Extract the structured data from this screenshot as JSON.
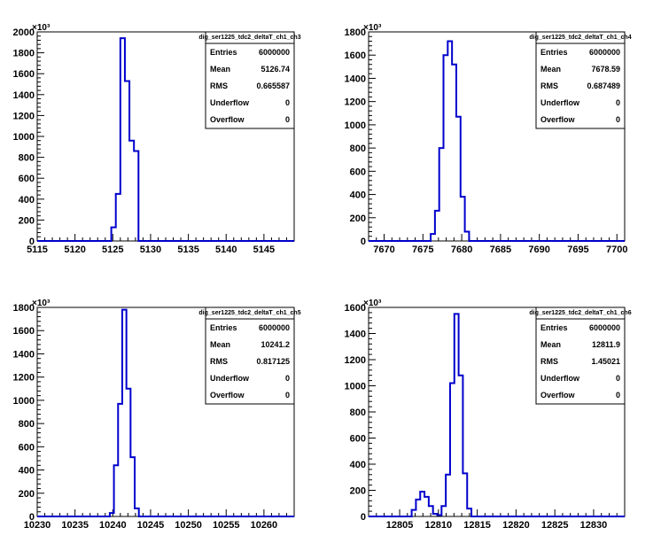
{
  "colors": {
    "line": "#0000cc",
    "axis": "#000000",
    "background": "#ffffff"
  },
  "chart_data": [
    {
      "type": "histogram",
      "exponent_label": "×10³",
      "xlim": [
        5115,
        5149
      ],
      "ylim": [
        0,
        2000
      ],
      "x_ticks": [
        "5115",
        "5120",
        "5125",
        "5130",
        "5135",
        "5140",
        "5145"
      ],
      "y_ticks": [
        "0",
        "200",
        "400",
        "600",
        "800",
        "1000",
        "1200",
        "1400",
        "1600",
        "1800",
        "2000"
      ],
      "bin_edges": [
        5124.8,
        5125.4,
        5126.0,
        5126.6,
        5127.2,
        5127.8,
        5128.4
      ],
      "values": [
        130,
        450,
        1940,
        1530,
        960,
        860,
        0
      ],
      "stats": {
        "title": "dig_ser1225_tdc2_deltaT_ch1_ch3",
        "rows": [
          {
            "label": "Entries",
            "value": "6000000"
          },
          {
            "label": "Mean",
            "value": "5126.74"
          },
          {
            "label": "RMS",
            "value": "0.665587"
          },
          {
            "label": "Underflow",
            "value": "0"
          },
          {
            "label": "Overflow",
            "value": "0"
          }
        ]
      }
    },
    {
      "type": "histogram",
      "exponent_label": "×10³",
      "xlim": [
        7668,
        7701
      ],
      "ylim": [
        0,
        1800
      ],
      "x_ticks": [
        "7670",
        "7675",
        "7680",
        "7685",
        "7690",
        "7695",
        "7700"
      ],
      "y_ticks": [
        "0",
        "200",
        "400",
        "600",
        "800",
        "1000",
        "1200",
        "1400",
        "1600",
        "1800"
      ],
      "bin_edges": [
        7676.0,
        7676.55,
        7677.1,
        7677.65,
        7678.2,
        7678.75,
        7679.3,
        7679.85,
        7680.4
      ],
      "values": [
        60,
        260,
        800,
        1600,
        1720,
        1520,
        1070,
        380,
        80
      ],
      "stats": {
        "title": "dig_ser1225_tdc2_deltaT_ch1_ch4",
        "rows": [
          {
            "label": "Entries",
            "value": "6000000"
          },
          {
            "label": "Mean",
            "value": "7678.59"
          },
          {
            "label": "RMS",
            "value": "0.687489"
          },
          {
            "label": "Underflow",
            "value": "0"
          },
          {
            "label": "Overflow",
            "value": "0"
          }
        ]
      }
    },
    {
      "type": "histogram",
      "exponent_label": "×10³",
      "xlim": [
        10230,
        10264
      ],
      "ylim": [
        0,
        1800
      ],
      "x_ticks": [
        "10230",
        "10235",
        "10240",
        "10245",
        "10250",
        "10255",
        "10260"
      ],
      "y_ticks": [
        "0",
        "200",
        "400",
        "600",
        "800",
        "1000",
        "1200",
        "1400",
        "1600",
        "1800"
      ],
      "bin_edges": [
        10239.6,
        10240.15,
        10240.7,
        10241.25,
        10241.8,
        10242.35,
        10242.9,
        10243.45
      ],
      "values": [
        30,
        440,
        970,
        1780,
        1100,
        510,
        70,
        0
      ],
      "stats": {
        "title": "dig_ser1225_tdc2_deltaT_ch1_ch5",
        "rows": [
          {
            "label": "Entries",
            "value": "6000000"
          },
          {
            "label": "Mean",
            "value": "10241.2"
          },
          {
            "label": "RMS",
            "value": "0.817125"
          },
          {
            "label": "Underflow",
            "value": "0"
          },
          {
            "label": "Overflow",
            "value": "0"
          }
        ]
      }
    },
    {
      "type": "histogram",
      "exponent_label": "×10³",
      "xlim": [
        12801,
        12834
      ],
      "ylim": [
        0,
        1600
      ],
      "x_ticks": [
        "12805",
        "12810",
        "12815",
        "12820",
        "12825",
        "12830"
      ],
      "y_ticks": [
        "0",
        "200",
        "400",
        "600",
        "800",
        "1000",
        "1200",
        "1400",
        "1600"
      ],
      "bin_edges": [
        12806.55,
        12807.1,
        12807.65,
        12808.2,
        12808.75,
        12809.3,
        12809.85,
        12810.4,
        12810.95,
        12811.5,
        12812.05,
        12812.6,
        12813.15,
        12813.7,
        12814.25
      ],
      "values": [
        50,
        130,
        190,
        150,
        80,
        20,
        10,
        80,
        320,
        1020,
        1550,
        1080,
        330,
        60,
        0
      ],
      "stats": {
        "title": "dig_ser1225_tdc2_deltaT_ch1_ch6",
        "rows": [
          {
            "label": "Entries",
            "value": "6000000"
          },
          {
            "label": "Mean",
            "value": "12811.9"
          },
          {
            "label": "RMS",
            "value": "1.45021"
          },
          {
            "label": "Underflow",
            "value": "0"
          },
          {
            "label": "Overflow",
            "value": "0"
          }
        ]
      }
    }
  ]
}
